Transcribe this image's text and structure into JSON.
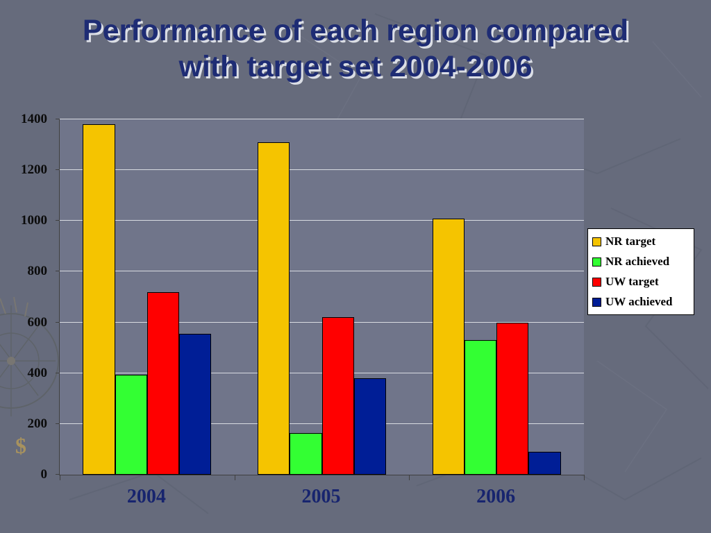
{
  "slide": {
    "title_line1": "Performance of each region compared",
    "title_line2": "with target set 2004-2006"
  },
  "decorations": {
    "dollar": "$"
  },
  "chart_data": {
    "type": "bar",
    "title": "Performance of each region compared with target set 2004-2006",
    "categories": [
      "2004",
      "2005",
      "2006"
    ],
    "series": [
      {
        "name": "NR target",
        "color": "#F5C400",
        "values": [
          1380,
          1310,
          1010
        ]
      },
      {
        "name": "NR achieved",
        "color": "#33FF33",
        "values": [
          395,
          165,
          530
        ]
      },
      {
        "name": "UW target",
        "color": "#FF0000",
        "values": [
          720,
          620,
          600
        ]
      },
      {
        "name": "UW achieved",
        "color": "#001E96",
        "values": [
          555,
          380,
          90
        ]
      }
    ],
    "xlabel": "",
    "ylabel": "",
    "ylim": [
      0,
      1400
    ],
    "ytick_step": 200,
    "grid": true,
    "legend_position": "right"
  }
}
